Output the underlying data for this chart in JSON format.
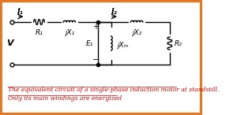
{
  "bg_color": "#ffffff",
  "border_color": "#E87722",
  "line_color": "#000000",
  "text_color": "#000000",
  "caption_color": "#cc0000",
  "caption_line1": "The equivalent circuit of a single-phase induction motor at standstill.",
  "caption_line2": "Only its main windings are energized",
  "label_I1": "I₁",
  "label_I2": "I₂",
  "label_V": "V",
  "label_R1": "R₁",
  "label_jX1": "jX₁",
  "label_E1": "E₁",
  "label_jXM": "jXₘ",
  "label_jX2": "jX₂",
  "label_R2": "R₂",
  "label_plus": "+",
  "label_minus": "−"
}
